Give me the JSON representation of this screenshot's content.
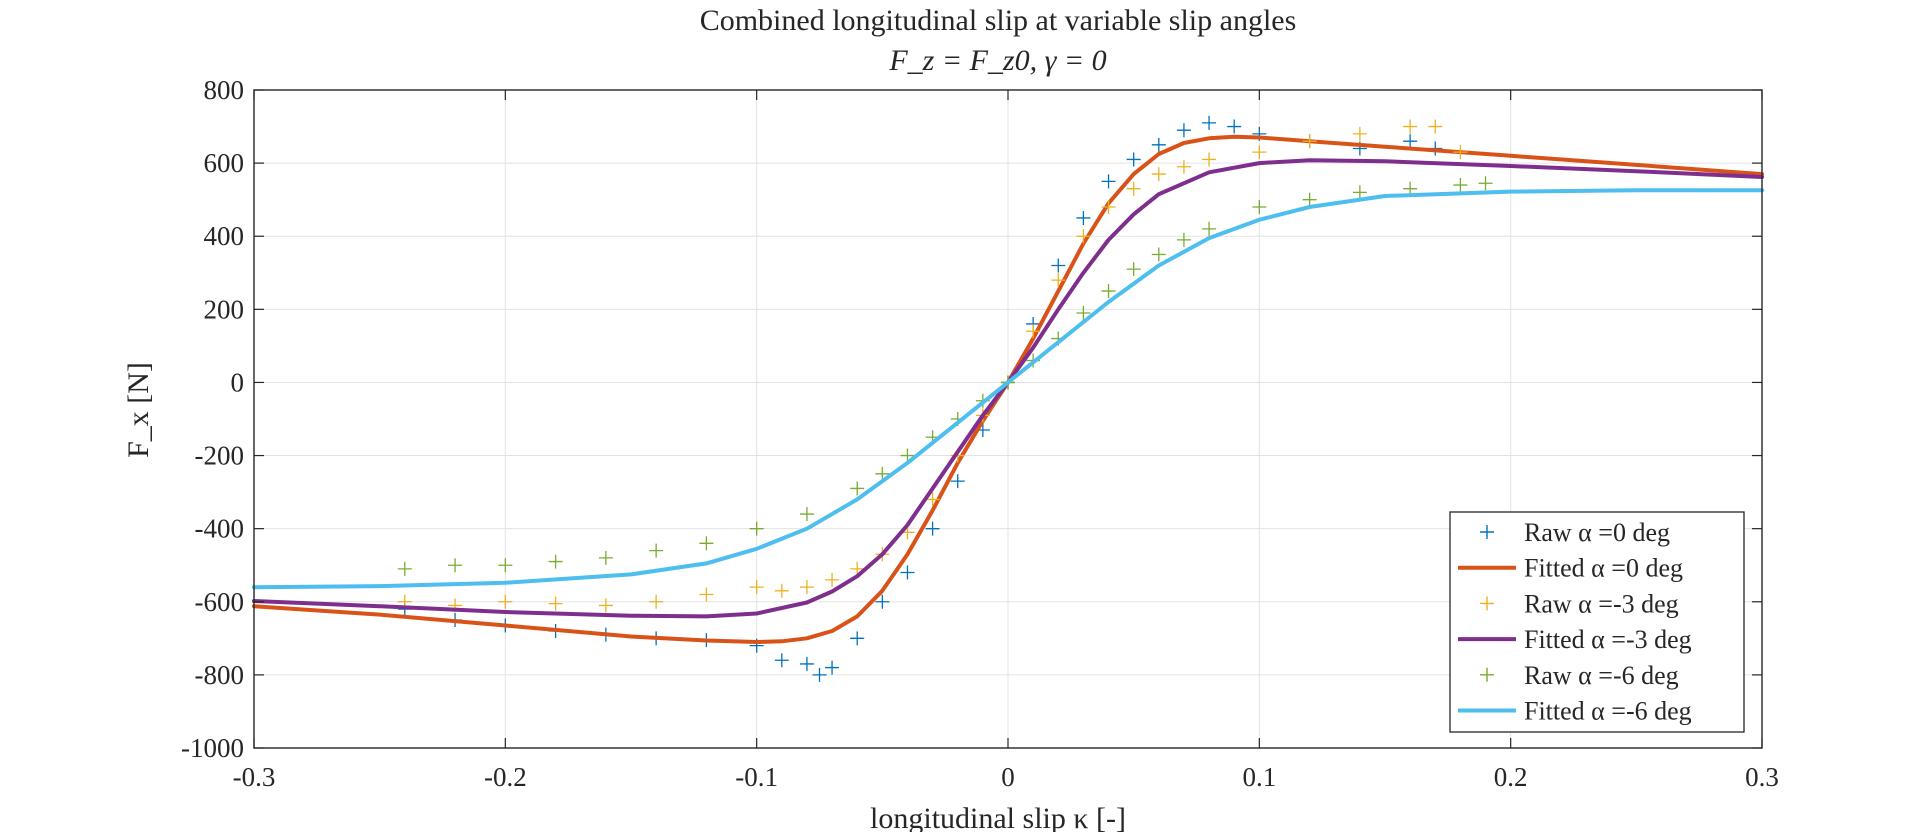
{
  "chart_data": {
    "type": "scatter",
    "title": "Combined longitudinal slip at variable slip angles",
    "subtitle": "F_z = F_z0, γ = 0",
    "xlabel": "longitudinal slip κ [-]",
    "ylabel": "F_x [N]",
    "xlim": [
      -0.3,
      0.3
    ],
    "ylim": [
      -1000,
      800
    ],
    "x_ticks": [
      "-0.3",
      "-0.2",
      "-0.1",
      "0",
      "0.1",
      "0.2",
      "0.3"
    ],
    "y_ticks": [
      "800",
      "600",
      "400",
      "200",
      "0",
      "-200",
      "-400",
      "-600",
      "-800",
      "-1000"
    ],
    "grid": true,
    "legend_position": "bottom-right",
    "series": [
      {
        "name": "Raw α =0 deg",
        "kind": "markers",
        "marker": "plus",
        "color": "#0072BD",
        "x": [
          -0.24,
          -0.22,
          -0.2,
          -0.18,
          -0.16,
          -0.14,
          -0.12,
          -0.1,
          -0.09,
          -0.08,
          -0.075,
          -0.07,
          -0.06,
          -0.05,
          -0.04,
          -0.03,
          -0.02,
          -0.01,
          0.0,
          0.01,
          0.02,
          0.03,
          0.04,
          0.05,
          0.06,
          0.07,
          0.08,
          0.09,
          0.1,
          0.12,
          0.14,
          0.16,
          0.17
        ],
        "y": [
          -620,
          -650,
          -665,
          -680,
          -690,
          -700,
          -705,
          -720,
          -760,
          -770,
          -800,
          -780,
          -700,
          -600,
          -520,
          -400,
          -270,
          -130,
          0,
          160,
          320,
          450,
          550,
          610,
          650,
          690,
          710,
          700,
          680,
          660,
          640,
          660,
          640
        ]
      },
      {
        "name": "Fitted α =0 deg",
        "kind": "line",
        "color": "#D95319",
        "x": [
          -0.3,
          -0.25,
          -0.2,
          -0.15,
          -0.12,
          -0.1,
          -0.09,
          -0.08,
          -0.07,
          -0.06,
          -0.05,
          -0.04,
          -0.03,
          -0.02,
          -0.01,
          0.0,
          0.01,
          0.02,
          0.03,
          0.04,
          0.05,
          0.06,
          0.07,
          0.08,
          0.09,
          0.1,
          0.12,
          0.15,
          0.2,
          0.25,
          0.3
        ],
        "y": [
          -612,
          -635,
          -665,
          -695,
          -706,
          -710,
          -708,
          -700,
          -680,
          -640,
          -570,
          -470,
          -350,
          -220,
          -105,
          0,
          120,
          250,
          380,
          490,
          570,
          625,
          655,
          668,
          672,
          670,
          660,
          645,
          620,
          595,
          570
        ]
      },
      {
        "name": "Raw α =-3 deg",
        "kind": "markers",
        "marker": "plus",
        "color": "#EDB120",
        "x": [
          -0.24,
          -0.22,
          -0.2,
          -0.18,
          -0.16,
          -0.14,
          -0.12,
          -0.1,
          -0.09,
          -0.08,
          -0.07,
          -0.06,
          -0.05,
          -0.04,
          -0.03,
          -0.02,
          -0.01,
          0.0,
          0.01,
          0.02,
          0.03,
          0.04,
          0.05,
          0.06,
          0.07,
          0.08,
          0.1,
          0.12,
          0.14,
          0.16,
          0.17,
          0.18
        ],
        "y": [
          -600,
          -610,
          -600,
          -605,
          -610,
          -600,
          -580,
          -560,
          -570,
          -560,
          -540,
          -510,
          -470,
          -410,
          -320,
          -200,
          -90,
          0,
          140,
          280,
          400,
          480,
          530,
          570,
          590,
          610,
          630,
          660,
          680,
          700,
          700,
          630
        ]
      },
      {
        "name": "Fitted α =-3 deg",
        "kind": "line",
        "color": "#7E2F8E",
        "x": [
          -0.3,
          -0.25,
          -0.2,
          -0.15,
          -0.12,
          -0.1,
          -0.08,
          -0.07,
          -0.06,
          -0.05,
          -0.04,
          -0.03,
          -0.02,
          -0.01,
          0.0,
          0.01,
          0.02,
          0.03,
          0.04,
          0.05,
          0.06,
          0.08,
          0.1,
          0.12,
          0.15,
          0.2,
          0.25,
          0.3
        ],
        "y": [
          -598,
          -612,
          -628,
          -638,
          -640,
          -632,
          -602,
          -572,
          -530,
          -470,
          -390,
          -290,
          -190,
          -90,
          0,
          95,
          200,
          300,
          390,
          460,
          515,
          575,
          600,
          608,
          605,
          592,
          578,
          562
        ]
      },
      {
        "name": "Raw α =-6 deg",
        "kind": "markers",
        "marker": "plus",
        "color": "#77AC30",
        "x": [
          -0.24,
          -0.22,
          -0.2,
          -0.18,
          -0.16,
          -0.14,
          -0.12,
          -0.1,
          -0.08,
          -0.06,
          -0.05,
          -0.04,
          -0.03,
          -0.02,
          -0.01,
          0.0,
          0.01,
          0.02,
          0.03,
          0.04,
          0.05,
          0.06,
          0.07,
          0.08,
          0.1,
          0.12,
          0.14,
          0.16,
          0.18,
          0.19
        ],
        "y": [
          -510,
          -500,
          -500,
          -490,
          -480,
          -460,
          -440,
          -400,
          -360,
          -290,
          -250,
          -200,
          -150,
          -100,
          -50,
          0,
          60,
          120,
          190,
          250,
          310,
          350,
          390,
          420,
          480,
          500,
          520,
          530,
          540,
          545
        ]
      },
      {
        "name": "Fitted α =-6 deg",
        "kind": "line",
        "color": "#4DBEEE",
        "x": [
          -0.3,
          -0.25,
          -0.2,
          -0.15,
          -0.12,
          -0.1,
          -0.08,
          -0.06,
          -0.04,
          -0.02,
          0.0,
          0.02,
          0.04,
          0.06,
          0.08,
          0.1,
          0.12,
          0.15,
          0.2,
          0.25,
          0.3
        ],
        "y": [
          -560,
          -557,
          -548,
          -525,
          -495,
          -455,
          -400,
          -320,
          -220,
          -110,
          0,
          110,
          220,
          320,
          395,
          445,
          480,
          510,
          522,
          526,
          526
        ]
      }
    ]
  }
}
